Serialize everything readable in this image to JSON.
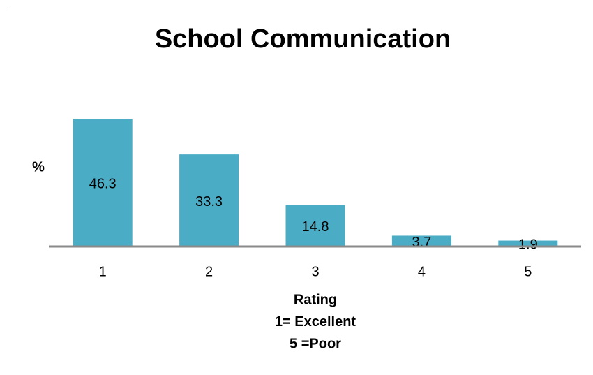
{
  "chart_data": {
    "type": "bar",
    "title": "School Communication",
    "ylabel": "%",
    "xlabel": [
      "Rating",
      "1= Excellent",
      "5 =Poor"
    ],
    "categories": [
      "1",
      "2",
      "3",
      "4",
      "5"
    ],
    "values": [
      46.3,
      33.3,
      14.8,
      3.7,
      1.9
    ],
    "color": "#4bacc6",
    "ylim": [
      0,
      50
    ],
    "grid": false,
    "data_labels": true
  }
}
